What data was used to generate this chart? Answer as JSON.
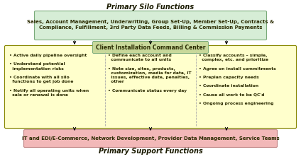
{
  "title_top": "Primary Silo Functions",
  "title_bottom": "Primary Support Functions",
  "top_box_text": "Sales, Account Management, Underwriting, Group Set-Up, Member Set-Up, Contracts &\nCompliance, Fulfillment, 3rd Party Data Feeds, Billing & Commission Payments",
  "bottom_box_text": "IT and EDI/E-Commerce, Network Development, Provider Data Management, Service Teams",
  "center_label": "Client Installation Command Center",
  "left_bullets": "• Active daily pipeline oversight\n\n• Understand potential\n  implementation risks\n\n• Coordinate with all silo\n  functions to get job done\n\n• Notify all operating units when\n  sale or renewal is done",
  "center_bullets": "• Define each account and\n  communicate to all units\n\n• Note size, sites, products,\n  customization, media for data, IT\n  issues, effective date, penalties,\n  other\n\n• Communicate status every day",
  "right_bullets": "• Classify accounts – simple,\n  complex, etc. and prioritize\n\n• Agree on install commitments\n\n• Preplan capacity needs\n\n• Coordinate installation\n\n• Cause all work to be QC'd\n\n• Ongoing process engineering",
  "top_box_fill": "#d6edd6",
  "top_box_edge": "#7aaa7a",
  "bottom_box_fill": "#f2b8b8",
  "bottom_box_edge": "#c08080",
  "center_label_fill": "#c8d89a",
  "center_label_edge": "#7aaa7a",
  "main_box_fill": "#ffffcc",
  "main_box_edge": "#888800",
  "bg_color": "#ffffff",
  "text_color": "#2a2a00",
  "title_color": "#1a1a00",
  "arrow_color": "#000000"
}
